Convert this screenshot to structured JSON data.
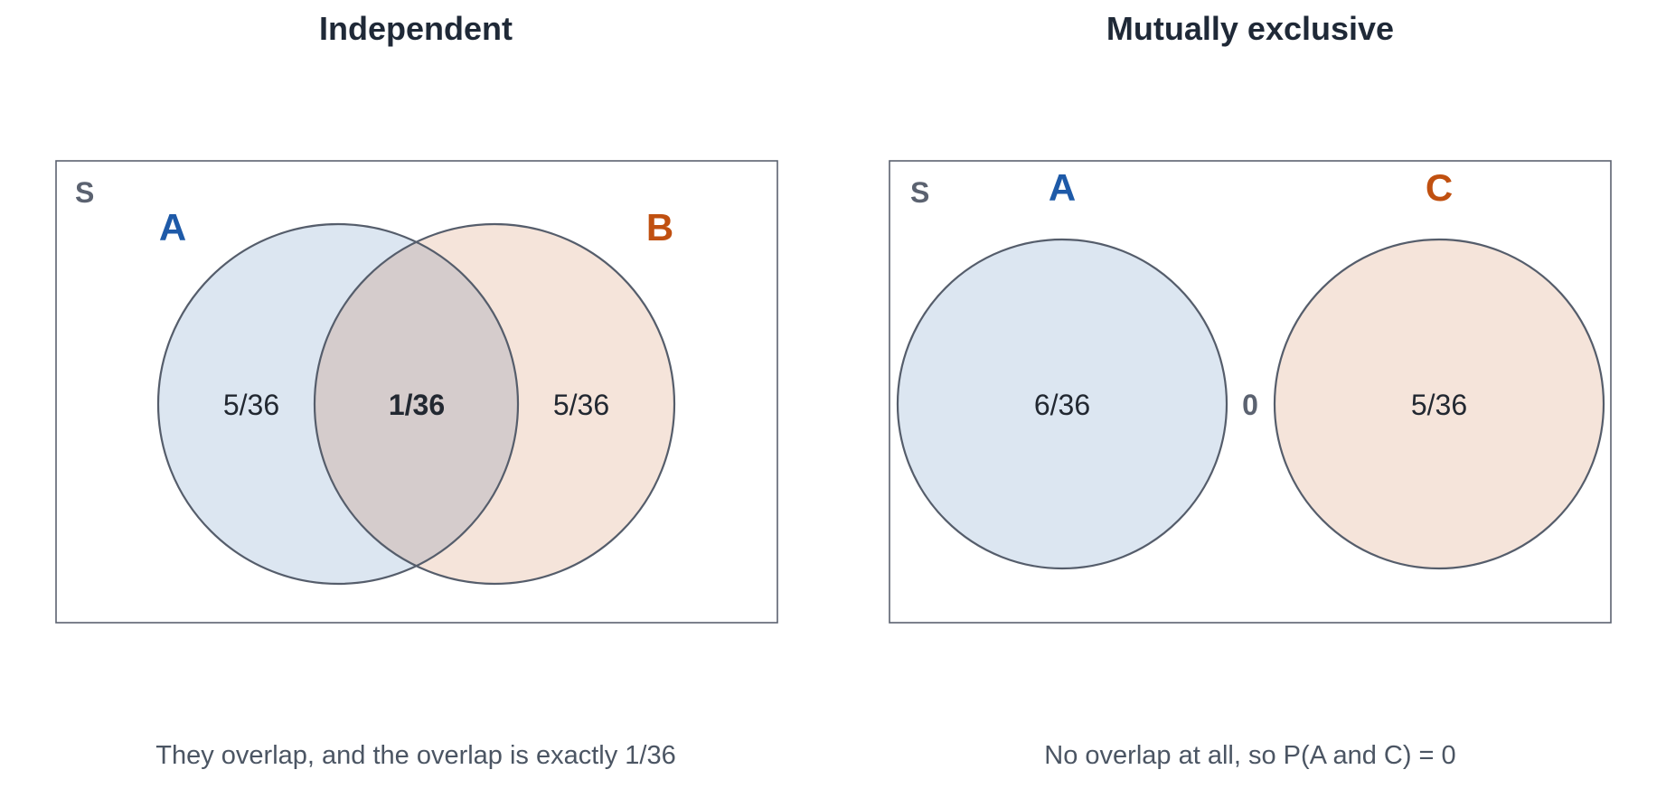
{
  "colors": {
    "set_a": "#1e5aa8",
    "set_b": "#c05010",
    "set_a_fill": "#dce6f1",
    "set_b_fill": "#f5e4da",
    "overlap_fill": "#d5cccc",
    "frame": "#5b6270",
    "sample_space_label": "#5b6270"
  },
  "panels": [
    {
      "title": "Independent",
      "sample_space_label": "S",
      "set_a_label": "A",
      "set_b_label": "B",
      "region_a_only": "5/36",
      "region_overlap": "1/36",
      "region_b_only": "5/36",
      "caption": "They overlap, and the overlap is exactly 1/36"
    },
    {
      "title": "Mutually exclusive",
      "sample_space_label": "S",
      "set_a_label": "A",
      "set_c_label": "C",
      "region_a": "6/36",
      "region_gap": "0",
      "region_c": "5/36",
      "caption": "No overlap at all, so P(A and C) = 0"
    }
  ]
}
